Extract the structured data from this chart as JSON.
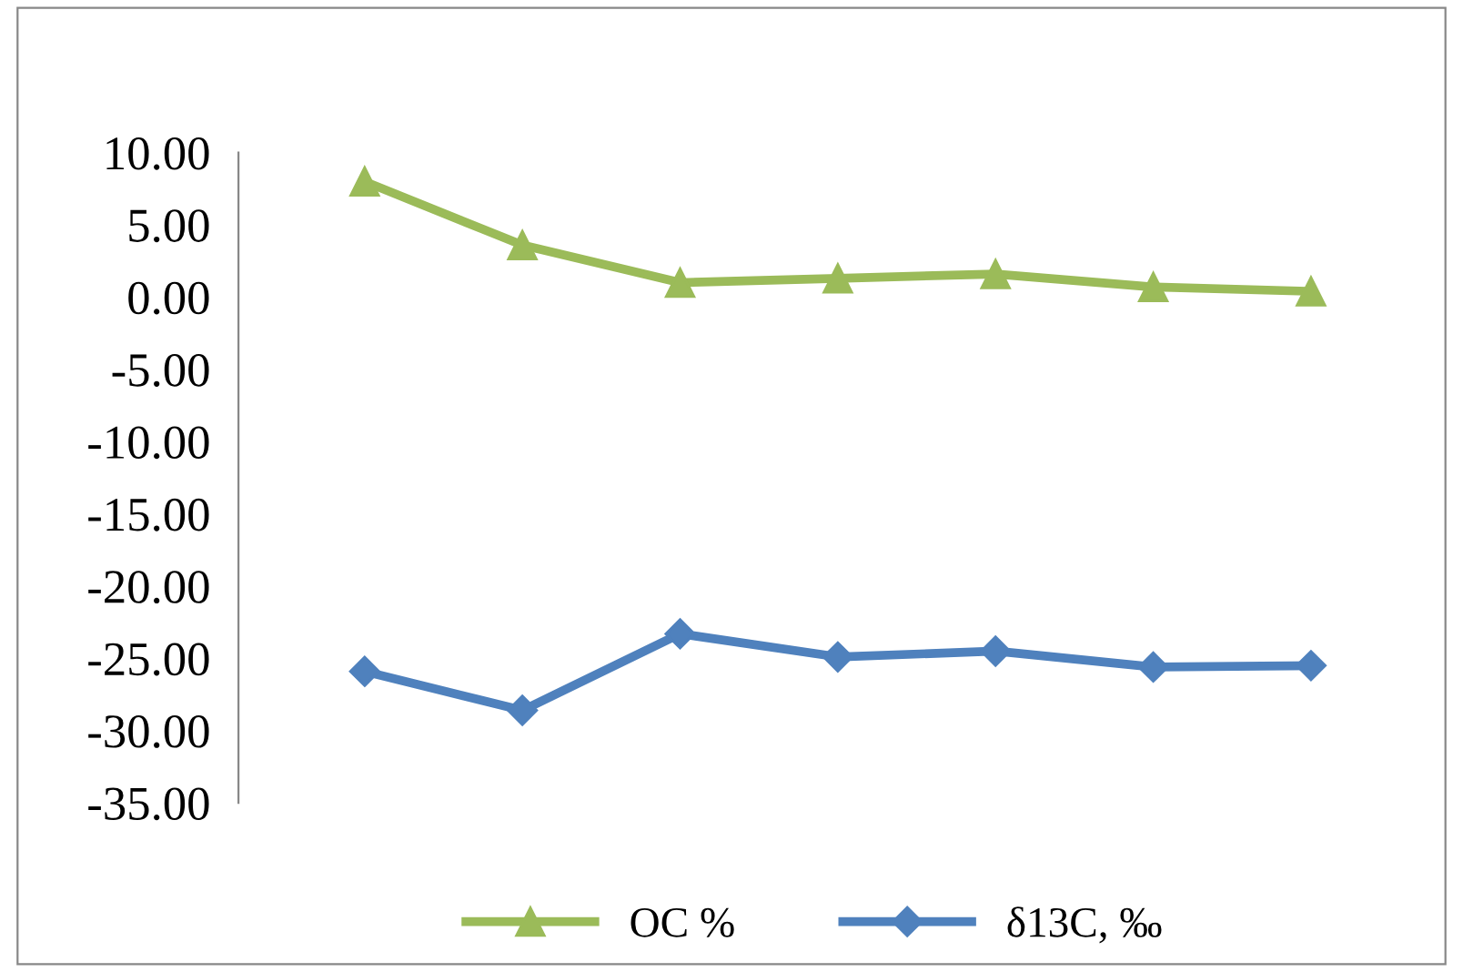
{
  "chart_data": {
    "type": "line",
    "categories": [
      null,
      null,
      null,
      null,
      null,
      null,
      null
    ],
    "series": [
      {
        "name": "OC %",
        "color": "#9bbb59",
        "marker": "triangle",
        "values": [
          8.0,
          3.6,
          1.0,
          1.3,
          1.6,
          0.7,
          0.4
        ]
      },
      {
        "name": "δ13C, ‰",
        "color": "#4f81bd",
        "marker": "diamond",
        "values": [
          -25.9,
          -28.6,
          -23.3,
          -24.9,
          -24.5,
          -25.6,
          -25.5
        ]
      }
    ],
    "ylim": [
      -35,
      10
    ],
    "yticks": [
      {
        "value": 10,
        "label": "10.00"
      },
      {
        "value": 5,
        "label": "5.00"
      },
      {
        "value": 0,
        "label": "0.00"
      },
      {
        "value": -5,
        "label": "-5.00"
      },
      {
        "value": -10,
        "label": "-10.00"
      },
      {
        "value": -15,
        "label": "-15.00"
      },
      {
        "value": -20,
        "label": "-20.00"
      },
      {
        "value": -25,
        "label": "-25.00"
      },
      {
        "value": -30,
        "label": "-30.00"
      },
      {
        "value": -35,
        "label": "-35.00"
      }
    ],
    "grid": false,
    "legend": "bottom",
    "tick_labels": "y",
    "line_style": "solid"
  }
}
